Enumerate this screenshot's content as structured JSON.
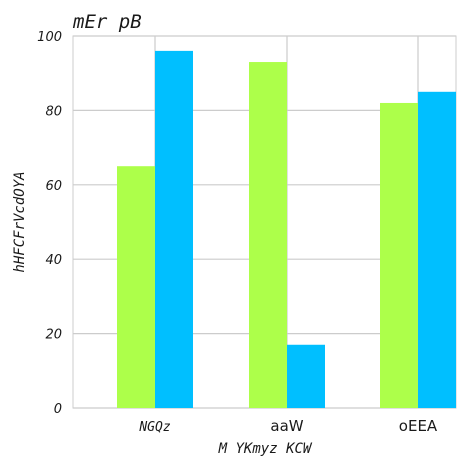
{
  "chart_data": {
    "type": "bar",
    "title": "mEr pB",
    "xlabel": "M YKmyz  KCW",
    "ylabel": "hHFCFrVcdOYA",
    "categories": [
      "NGQz",
      "aaW",
      "oEEA"
    ],
    "series": [
      {
        "values": [
          65,
          93,
          82
        ],
        "color": "#adff4a"
      },
      {
        "values": [
          96,
          17,
          85
        ],
        "color": "#00bfff"
      }
    ],
    "ylim": [
      0,
      100
    ],
    "yticks": [
      0,
      20,
      40,
      60,
      80,
      100
    ],
    "grid": true,
    "legend": "none"
  }
}
